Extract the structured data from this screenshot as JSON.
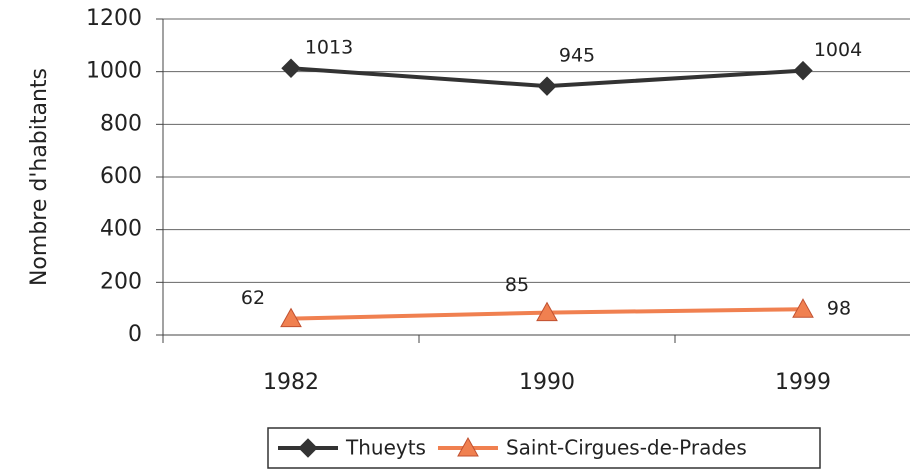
{
  "chart_data": {
    "type": "line",
    "y_label": "Nombre d'habitants",
    "categories": [
      "1982",
      "1990",
      "1999"
    ],
    "series": [
      {
        "name": "Thueyts",
        "color": "#333333",
        "marker": "diamond",
        "values": [
          1013,
          945,
          1004
        ]
      },
      {
        "name": "Saint-Cirgues-de-Prades",
        "color": "#f08050",
        "marker": "triangle",
        "values": [
          62,
          85,
          98
        ]
      }
    ],
    "ylim": [
      0,
      1200
    ],
    "yticks": [
      0,
      200,
      400,
      600,
      800,
      1000,
      1200
    ],
    "grid": true,
    "legend": "bottom"
  }
}
